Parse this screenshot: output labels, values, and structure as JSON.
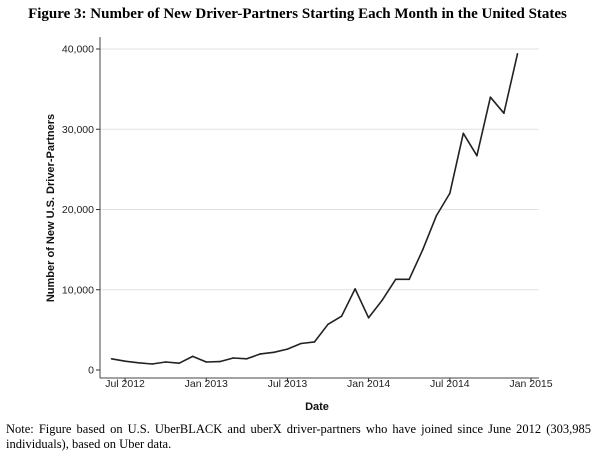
{
  "figure": {
    "title": "Figure 3: Number of New Driver-Partners Starting Each Month in the United States",
    "note": "Note: Figure based on U.S. UberBLACK and uberX driver-partners who have joined since June 2012 (303,985 individuals), based on Uber data."
  },
  "chart_data": {
    "type": "line",
    "title": "Figure 3: Number of New Driver-Partners Starting Each Month in the United States",
    "xlabel": "Date",
    "ylabel": "Number of New U.S. Driver-Partners",
    "x_ticks": [
      "Jul 2012",
      "Jan 2013",
      "Jul 2013",
      "Jan 2014",
      "Jul 2014",
      "Jan 2015"
    ],
    "y_ticks": [
      "0",
      "10,000",
      "20,000",
      "30,000",
      "40,000"
    ],
    "ylim": [
      0,
      40000
    ],
    "xlim": [
      "2012-05",
      "2015-01"
    ],
    "grid": "horizontal",
    "line_color": "#222222",
    "series": [
      {
        "x": [
          "2012-06",
          "2012-07",
          "2012-08",
          "2012-09",
          "2012-10",
          "2012-11",
          "2012-12",
          "2013-01",
          "2013-02",
          "2013-03",
          "2013-04",
          "2013-05",
          "2013-06",
          "2013-07",
          "2013-08",
          "2013-09",
          "2013-10",
          "2013-11",
          "2013-12",
          "2014-01",
          "2014-02",
          "2014-03",
          "2014-04",
          "2014-05",
          "2014-06",
          "2014-07",
          "2014-08",
          "2014-09",
          "2014-10",
          "2014-11",
          "2014-12"
        ],
        "values": [
          1400,
          1100,
          900,
          750,
          1000,
          850,
          1700,
          1000,
          1050,
          1500,
          1400,
          2000,
          2200,
          2600,
          3300,
          3500,
          5700,
          6700,
          10100,
          6500,
          8700,
          11300,
          11300,
          15000,
          19200,
          22000,
          29500,
          26700,
          34000,
          32000,
          39400
        ]
      }
    ]
  }
}
